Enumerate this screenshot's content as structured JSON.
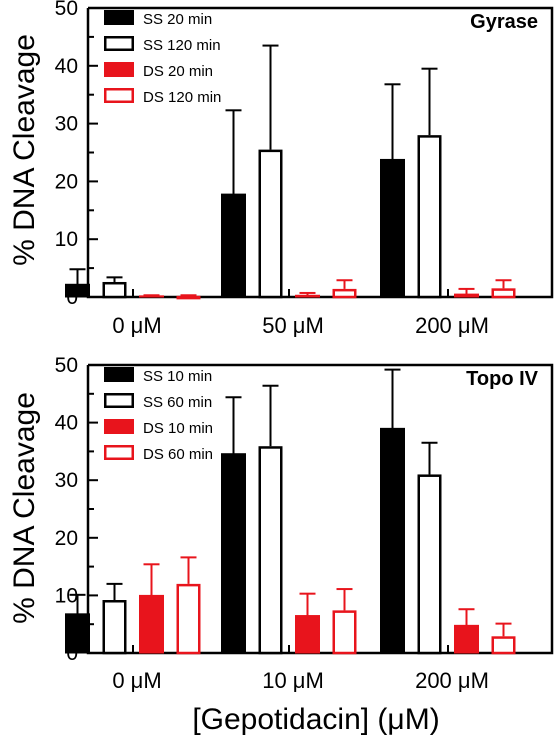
{
  "chart_data": [
    {
      "type": "bar",
      "title": "Gyrase",
      "ylabel": "% DNA Cleavage",
      "xlabel": "",
      "ylim": [
        0,
        50
      ],
      "yticks": [
        0,
        10,
        20,
        30,
        40,
        50
      ],
      "categories": [
        "0 μM",
        "50 μM",
        "200 μM"
      ],
      "legend_position": "top-left",
      "series": [
        {
          "name": "SS 20 min",
          "values": [
            2.2,
            17.8,
            23.8
          ],
          "errors": [
            2.6,
            14.5,
            13.0
          ],
          "color": "#000000",
          "filled": true
        },
        {
          "name": "SS 120 min",
          "values": [
            2.6,
            25.5,
            28.0
          ],
          "errors": [
            0.8,
            18.0,
            11.5
          ],
          "color": "#000000",
          "filled": false
        },
        {
          "name": "DS 20 min",
          "values": [
            0.2,
            0.3,
            0.5
          ],
          "errors": [
            0.1,
            0.4,
            0.9
          ],
          "color": "#e8141c",
          "filled": true
        },
        {
          "name": "DS 120 min",
          "values": [
            0.2,
            1.4,
            1.5
          ],
          "errors": [
            0.1,
            1.5,
            1.4
          ],
          "color": "#e8141c",
          "filled": false
        }
      ]
    },
    {
      "type": "bar",
      "title": "Topo IV",
      "ylabel": "% DNA Cleavage",
      "xlabel": "[Gepotidacin] (μM)",
      "ylim": [
        0,
        50
      ],
      "yticks": [
        0,
        10,
        20,
        30,
        40,
        50
      ],
      "categories": [
        "0 μM",
        "10 μM",
        "200 μM"
      ],
      "legend_position": "top-left",
      "series": [
        {
          "name": "SS 10 min",
          "values": [
            6.8,
            34.6,
            39.0
          ],
          "errors": [
            3.3,
            9.8,
            10.2
          ],
          "color": "#000000",
          "filled": true
        },
        {
          "name": "SS 60 min",
          "values": [
            9.2,
            35.9,
            31.0
          ],
          "errors": [
            2.8,
            10.5,
            5.5
          ],
          "color": "#000000",
          "filled": false
        },
        {
          "name": "DS 10 min",
          "values": [
            10.0,
            6.5,
            4.8
          ],
          "errors": [
            5.4,
            3.8,
            2.8
          ],
          "color": "#e8141c",
          "filled": true
        },
        {
          "name": "DS 60 min",
          "values": [
            12.0,
            7.4,
            2.9
          ],
          "errors": [
            4.6,
            3.7,
            2.2
          ],
          "color": "#e8141c",
          "filled": false
        }
      ]
    }
  ]
}
